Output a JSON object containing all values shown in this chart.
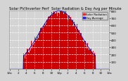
{
  "title": "Solar PV/Inverter Perf  Solar Radiation & Day Avg per Minute",
  "bg_color": "#d4d4d4",
  "plot_bg_color": "#d4d4d4",
  "grid_color": "#ffffff",
  "bar_color": "#cc0000",
  "avg_line_color": "#0000cc",
  "legend_entries": [
    "Solar Radiation",
    "Day Average"
  ],
  "legend_colors": [
    "#ff2222",
    "#2222ff"
  ],
  "ylim": [
    0,
    800
  ],
  "y_ticks": [
    100,
    200,
    300,
    400,
    500,
    600,
    700,
    800
  ],
  "num_points": 288,
  "peak_index": 144,
  "peak_value": 800,
  "sigma": 60,
  "start_index": 40,
  "end_index": 248,
  "title_color": "#000000",
  "title_fontsize": 3.8,
  "tick_fontsize": 3.0,
  "x_tick_labels": [
    "12a",
    "2",
    "4",
    "6",
    "8",
    "10",
    "12p",
    "2",
    "4",
    "6",
    "8",
    "10",
    "12a"
  ],
  "x_tick_positions": [
    0,
    24,
    48,
    72,
    96,
    120,
    144,
    168,
    192,
    216,
    240,
    264,
    288
  ]
}
